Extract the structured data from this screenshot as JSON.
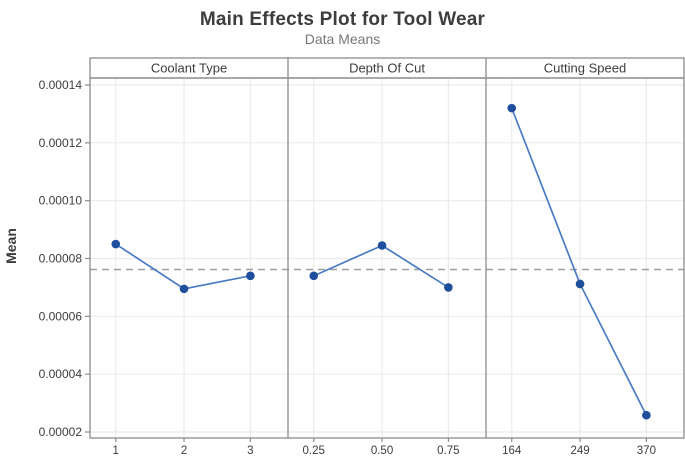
{
  "chart_data": {
    "type": "line",
    "title": "Main Effects Plot for Tool Wear",
    "subtitle": "Data Means",
    "ylabel": "Mean",
    "ylim": [
      2e-05,
      0.00014
    ],
    "yticks": [
      2e-05,
      4e-05,
      6e-05,
      8e-05,
      0.0001,
      0.00012,
      0.00014
    ],
    "grid": true,
    "legend": "none",
    "reference_line_mean": 7.62e-05,
    "panels": [
      {
        "label": "Coolant Type",
        "categories": [
          "1",
          "2",
          "3"
        ],
        "values": [
          8.5e-05,
          6.95e-05,
          7.4e-05
        ]
      },
      {
        "label": "Depth Of Cut",
        "categories": [
          "0.25",
          "0.50",
          "0.75"
        ],
        "values": [
          7.4e-05,
          8.45e-05,
          7e-05
        ]
      },
      {
        "label": "Cutting Speed",
        "categories": [
          "164",
          "249",
          "370"
        ],
        "values": [
          0.000132,
          7.12e-05,
          2.58e-05
        ]
      }
    ]
  },
  "colors": {
    "point": "#1f4e9c",
    "line": "#4a7bc4",
    "reference_line": "#9e9e9e",
    "grid": "#ebebeb",
    "frame": "#8c8c8c",
    "text": "#3d3d3d",
    "subtitle_text": "#777777"
  }
}
